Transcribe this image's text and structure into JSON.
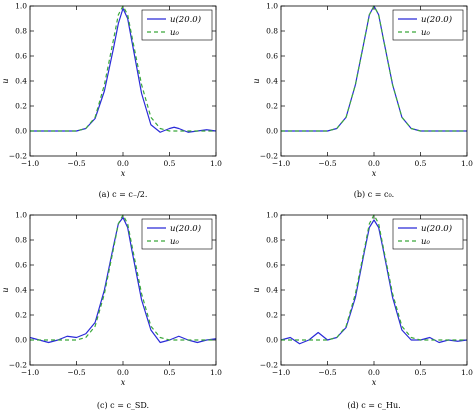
{
  "chart_data": [
    {
      "type": "line",
      "caption": "(a) c = c₋/2.",
      "xlabel": "x",
      "ylabel": "u",
      "xlim": [
        -1.0,
        1.0
      ],
      "ylim": [
        -0.2,
        1.0
      ],
      "xticks": [
        "−1.0",
        "−0.5",
        "0.0",
        "0.5",
        "1.0"
      ],
      "yticks": [
        "−0.2",
        "0.0",
        "0.2",
        "0.4",
        "0.6",
        "0.8",
        "1.0"
      ],
      "legend": "top-right",
      "series": [
        {
          "name": "u(20.0)",
          "color": "#2a2ad8",
          "style": "solid",
          "x": [
            -1.0,
            -0.8,
            -0.6,
            -0.5,
            -0.4,
            -0.3,
            -0.2,
            -0.1,
            -0.05,
            0.0,
            0.05,
            0.1,
            0.2,
            0.3,
            0.4,
            0.5,
            0.55,
            0.6,
            0.7,
            0.8,
            0.9,
            1.0
          ],
          "y": [
            0.0,
            0.0,
            0.0,
            0.0,
            0.02,
            0.1,
            0.32,
            0.67,
            0.86,
            0.98,
            0.9,
            0.7,
            0.3,
            0.05,
            -0.01,
            0.02,
            0.03,
            0.02,
            -0.01,
            0.0,
            0.01,
            0.0
          ]
        },
        {
          "name": "u₀",
          "color": "#3aa83a",
          "style": "dashed",
          "x": [
            -1.0,
            -0.8,
            -0.6,
            -0.5,
            -0.4,
            -0.3,
            -0.2,
            -0.1,
            -0.05,
            0.0,
            0.05,
            0.1,
            0.2,
            0.3,
            0.4,
            0.5,
            0.6,
            0.7,
            0.8,
            0.9,
            1.0
          ],
          "y": [
            0.0,
            0.0,
            0.0,
            0.0,
            0.02,
            0.11,
            0.37,
            0.74,
            0.93,
            1.0,
            0.93,
            0.74,
            0.37,
            0.11,
            0.02,
            0.0,
            0.0,
            0.0,
            0.0,
            0.0,
            0.0
          ]
        }
      ]
    },
    {
      "type": "line",
      "caption": "(b) c = c₀.",
      "xlabel": "x",
      "ylabel": "u",
      "xlim": [
        -1.0,
        1.0
      ],
      "ylim": [
        -0.2,
        1.0
      ],
      "xticks": [
        "−1.0",
        "−0.5",
        "0.0",
        "0.5",
        "1.0"
      ],
      "yticks": [
        "−0.2",
        "0.0",
        "0.2",
        "0.4",
        "0.6",
        "0.8",
        "1.0"
      ],
      "legend": "top-right",
      "series": [
        {
          "name": "u(20.0)",
          "color": "#2a2ad8",
          "style": "solid",
          "x": [
            -1.0,
            -0.8,
            -0.6,
            -0.5,
            -0.4,
            -0.3,
            -0.2,
            -0.1,
            -0.05,
            0.0,
            0.05,
            0.1,
            0.2,
            0.3,
            0.4,
            0.5,
            0.6,
            0.7,
            0.8,
            0.9,
            1.0
          ],
          "y": [
            0.0,
            0.0,
            0.0,
            0.0,
            0.02,
            0.11,
            0.37,
            0.74,
            0.93,
            1.0,
            0.93,
            0.74,
            0.37,
            0.11,
            0.02,
            0.0,
            0.0,
            0.0,
            0.0,
            0.0,
            0.0
          ]
        },
        {
          "name": "u₀",
          "color": "#3aa83a",
          "style": "dashed",
          "x": [
            -1.0,
            -0.8,
            -0.6,
            -0.5,
            -0.4,
            -0.3,
            -0.2,
            -0.1,
            -0.05,
            0.0,
            0.05,
            0.1,
            0.2,
            0.3,
            0.4,
            0.5,
            0.6,
            0.7,
            0.8,
            0.9,
            1.0
          ],
          "y": [
            0.0,
            0.0,
            0.0,
            0.0,
            0.02,
            0.11,
            0.37,
            0.74,
            0.93,
            1.0,
            0.93,
            0.74,
            0.37,
            0.11,
            0.02,
            0.0,
            0.0,
            0.0,
            0.0,
            0.0,
            0.0
          ]
        }
      ]
    },
    {
      "type": "line",
      "caption": "(c) c = c_SD.",
      "xlabel": "x",
      "ylabel": "u",
      "xlim": [
        -1.0,
        1.0
      ],
      "ylim": [
        -0.2,
        1.0
      ],
      "xticks": [
        "−1.0",
        "−0.5",
        "0.0",
        "0.5",
        "1.0"
      ],
      "yticks": [
        "−0.2",
        "0.0",
        "0.2",
        "0.4",
        "0.6",
        "0.8",
        "1.0"
      ],
      "legend": "top-right",
      "series": [
        {
          "name": "u(20.0)",
          "color": "#2a2ad8",
          "style": "solid",
          "x": [
            -1.0,
            -0.9,
            -0.8,
            -0.7,
            -0.6,
            -0.5,
            -0.4,
            -0.3,
            -0.2,
            -0.1,
            -0.05,
            0.0,
            0.05,
            0.1,
            0.2,
            0.3,
            0.4,
            0.5,
            0.6,
            0.7,
            0.8,
            0.9,
            1.0
          ],
          "y": [
            0.02,
            0.0,
            -0.02,
            0.0,
            0.03,
            0.02,
            0.05,
            0.14,
            0.4,
            0.76,
            0.93,
            0.98,
            0.9,
            0.7,
            0.32,
            0.08,
            -0.02,
            0.0,
            0.03,
            0.0,
            -0.02,
            0.0,
            0.01
          ]
        },
        {
          "name": "u₀",
          "color": "#3aa83a",
          "style": "dashed",
          "x": [
            -1.0,
            -0.8,
            -0.6,
            -0.5,
            -0.4,
            -0.3,
            -0.2,
            -0.1,
            -0.05,
            0.0,
            0.05,
            0.1,
            0.2,
            0.3,
            0.4,
            0.5,
            0.6,
            0.7,
            0.8,
            0.9,
            1.0
          ],
          "y": [
            0.0,
            0.0,
            0.0,
            0.0,
            0.02,
            0.11,
            0.37,
            0.74,
            0.93,
            1.0,
            0.93,
            0.74,
            0.37,
            0.11,
            0.02,
            0.0,
            0.0,
            0.0,
            0.0,
            0.0,
            0.0
          ]
        }
      ]
    },
    {
      "type": "line",
      "caption": "(d) c = c_Hu.",
      "xlabel": "x",
      "ylabel": "u",
      "xlim": [
        -1.0,
        1.0
      ],
      "ylim": [
        -0.2,
        1.0
      ],
      "xticks": [
        "−1.0",
        "−0.5",
        "0.0",
        "0.5",
        "1.0"
      ],
      "yticks": [
        "−0.2",
        "0.0",
        "0.2",
        "0.4",
        "0.6",
        "0.8",
        "1.0"
      ],
      "legend": "top-right",
      "series": [
        {
          "name": "u(20.0)",
          "color": "#2a2ad8",
          "style": "solid",
          "x": [
            -1.0,
            -0.9,
            -0.8,
            -0.7,
            -0.6,
            -0.5,
            -0.4,
            -0.3,
            -0.2,
            -0.1,
            -0.05,
            0.0,
            0.05,
            0.1,
            0.2,
            0.3,
            0.4,
            0.5,
            0.6,
            0.7,
            0.8,
            0.9,
            1.0
          ],
          "y": [
            0.0,
            0.02,
            -0.03,
            0.0,
            0.06,
            0.0,
            0.02,
            0.1,
            0.34,
            0.72,
            0.9,
            0.96,
            0.9,
            0.72,
            0.34,
            0.08,
            0.0,
            0.0,
            0.02,
            -0.02,
            0.0,
            -0.01,
            0.0
          ]
        },
        {
          "name": "u₀",
          "color": "#3aa83a",
          "style": "dashed",
          "x": [
            -1.0,
            -0.8,
            -0.6,
            -0.5,
            -0.4,
            -0.3,
            -0.2,
            -0.1,
            -0.05,
            0.0,
            0.05,
            0.1,
            0.2,
            0.3,
            0.4,
            0.5,
            0.6,
            0.7,
            0.8,
            0.9,
            1.0
          ],
          "y": [
            0.0,
            0.0,
            0.0,
            0.0,
            0.02,
            0.11,
            0.37,
            0.74,
            0.93,
            1.0,
            0.93,
            0.74,
            0.37,
            0.11,
            0.02,
            0.0,
            0.0,
            0.0,
            0.0,
            0.0,
            0.0
          ]
        }
      ]
    }
  ]
}
